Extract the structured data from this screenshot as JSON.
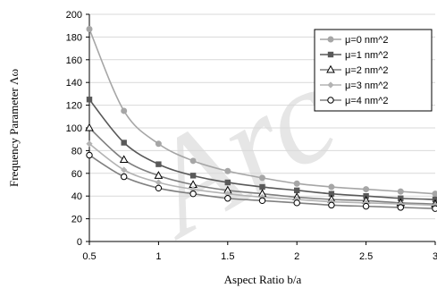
{
  "chart_data": {
    "type": "line",
    "title": "",
    "xlabel": "Aspect Ratio b/a",
    "ylabel": "Frequency Parameter Λω",
    "xlim": [
      0.5,
      3
    ],
    "ylim": [
      0,
      200
    ],
    "xticks": [
      0.5,
      1,
      1.5,
      2,
      2.5,
      3
    ],
    "xtick_labels": [
      "0.5",
      "1",
      "1.5",
      "2",
      "2.5",
      "3"
    ],
    "yticks": [
      0,
      20,
      40,
      60,
      80,
      100,
      120,
      140,
      160,
      180,
      200
    ],
    "ytick_labels": [
      "0",
      "20",
      "40",
      "60",
      "80",
      "100",
      "120",
      "140",
      "160",
      "180",
      "200"
    ],
    "grid": "horizontal",
    "legend_position": "top-right",
    "watermark": "Arc",
    "x": [
      0.5,
      0.75,
      1,
      1.25,
      1.5,
      1.75,
      2,
      2.25,
      2.5,
      2.75,
      3
    ],
    "series": [
      {
        "name": "μ=0 nm^2",
        "marker": "circle-filled",
        "color": "#a6a6a6",
        "values": [
          187,
          115,
          86,
          71,
          62,
          56,
          51,
          48,
          46,
          44,
          42
        ]
      },
      {
        "name": "μ=1 nm^2",
        "marker": "square-filled",
        "color": "#595959",
        "values": [
          125,
          87,
          68,
          58,
          52,
          48,
          45,
          42,
          40,
          38,
          37
        ]
      },
      {
        "name": "μ=2 nm^2",
        "marker": "triangle-open",
        "color": "#7f7f7f",
        "values": [
          100,
          72,
          58,
          50,
          45,
          42,
          39,
          37,
          36,
          34,
          33
        ]
      },
      {
        "name": "μ=3 nm^2",
        "marker": "diamond-filled",
        "color": "#b3b3b3",
        "values": [
          86,
          63,
          52,
          46,
          42,
          39,
          37,
          35,
          34,
          33,
          32
        ]
      },
      {
        "name": "μ=4 nm^2",
        "marker": "circle-open",
        "color": "#808080",
        "values": [
          76,
          57,
          47,
          42,
          38,
          36,
          34,
          32,
          31,
          30,
          29
        ]
      }
    ]
  }
}
